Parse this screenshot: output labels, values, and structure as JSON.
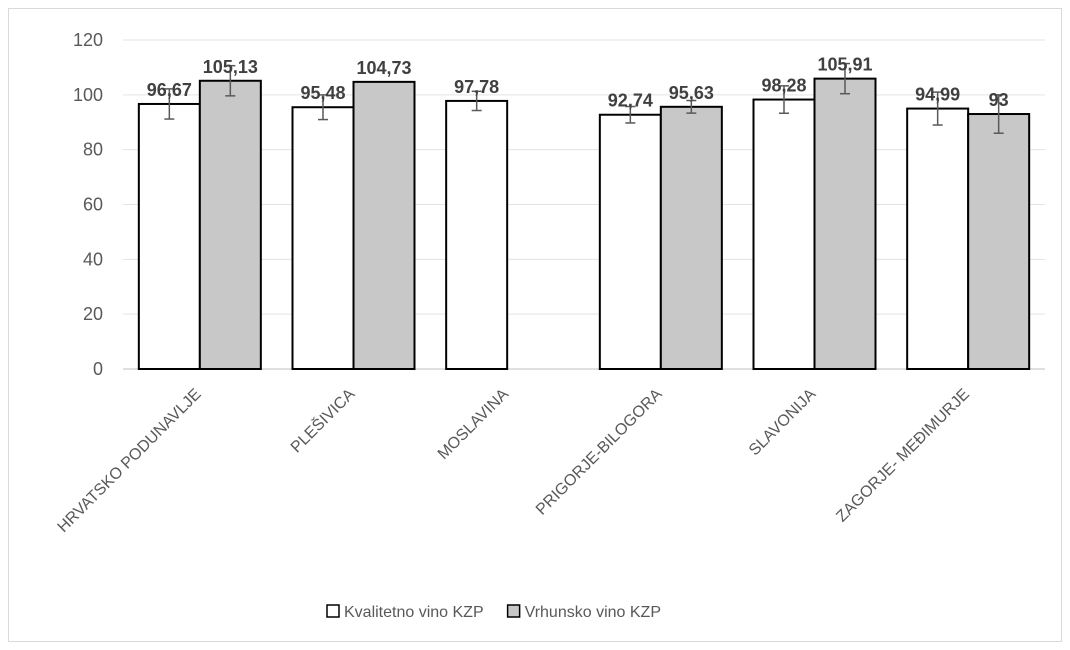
{
  "chart_data": {
    "type": "bar",
    "categories": [
      "HRVATSKO PODUNAVLJE",
      "PLEŠIVICA",
      "MOSLAVINA",
      "PRIGORJE-BILOGORA",
      "SLAVONIJA",
      "ZAGORJE- MEĐIMURJE"
    ],
    "series": [
      {
        "name": "Kvalitetno vino KZP",
        "color": "#ffffff",
        "values": [
          96.67,
          95.48,
          97.78,
          92.74,
          98.28,
          94.99
        ],
        "labels": [
          "96,67",
          "95,48",
          "97,78",
          "92,74",
          "98,28",
          "94,99"
        ],
        "error": [
          5.5,
          4.5,
          3.5,
          3.0,
          5.0,
          6.0
        ]
      },
      {
        "name": "Vrhunsko vino KZP",
        "color": "#c8c8c8",
        "values": [
          105.13,
          104.73,
          null,
          95.63,
          105.91,
          93
        ],
        "labels": [
          "105,13",
          "104,73",
          "",
          "95,63",
          "105,91",
          "93"
        ],
        "error": [
          5.5,
          0,
          null,
          2.3,
          5.5,
          7.0
        ]
      }
    ],
    "ylim": [
      0,
      120
    ],
    "yticks": [
      0,
      20,
      40,
      60,
      80,
      100,
      120
    ],
    "grid": true,
    "legend": "bottom",
    "xlabel": "",
    "ylabel": "",
    "title": ""
  }
}
